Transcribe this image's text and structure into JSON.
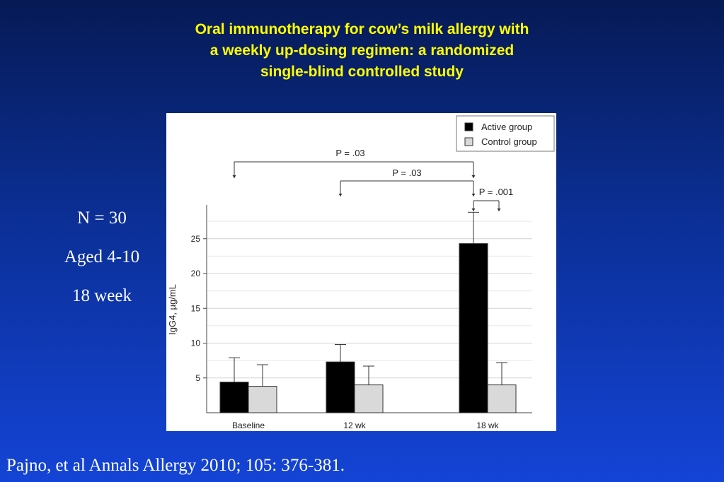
{
  "slide": {
    "title_lines": [
      "Oral immunotherapy for cow’s milk allergy with",
      "a weekly up-dosing regimen: a randomized",
      "single-blind controlled study"
    ],
    "stats": [
      "N = 30",
      "Aged 4-10",
      "18 week"
    ],
    "citation": "Pajno, et al Annals Allergy 2010; 105: 376-381.",
    "colors": {
      "title": "#ffff00",
      "text": "#ffffff",
      "background_top": "#061a55",
      "background_bottom": "#1444d6"
    }
  },
  "chart_data": {
    "type": "bar",
    "categories": [
      "Baseline",
      "12 wk",
      "18 wk"
    ],
    "series": [
      {
        "name": "Active group",
        "color": "#000000",
        "values": [
          4.4,
          7.3,
          24.3
        ],
        "error": [
          3.5,
          2.5,
          4.5
        ]
      },
      {
        "name": "Control group",
        "color": "#d9d9d9",
        "values": [
          3.8,
          4.0,
          4.0
        ],
        "error": [
          3.1,
          2.7,
          3.2
        ]
      }
    ],
    "ylabel": "IgG4, µg/mL",
    "yticks": [
      5,
      10,
      15,
      20,
      25
    ],
    "ylim": [
      0,
      30
    ],
    "grid": true,
    "legend": "top-right",
    "significance": [
      {
        "label": "P = .03",
        "from_category": 0,
        "to_category": 2,
        "series": 0
      },
      {
        "label": "P = .03",
        "from_category": 1,
        "to_category": 2,
        "series": 0
      },
      {
        "label": "P = .001",
        "from_category": 2,
        "to_category": 2,
        "series_pair": [
          0,
          1
        ]
      }
    ]
  }
}
